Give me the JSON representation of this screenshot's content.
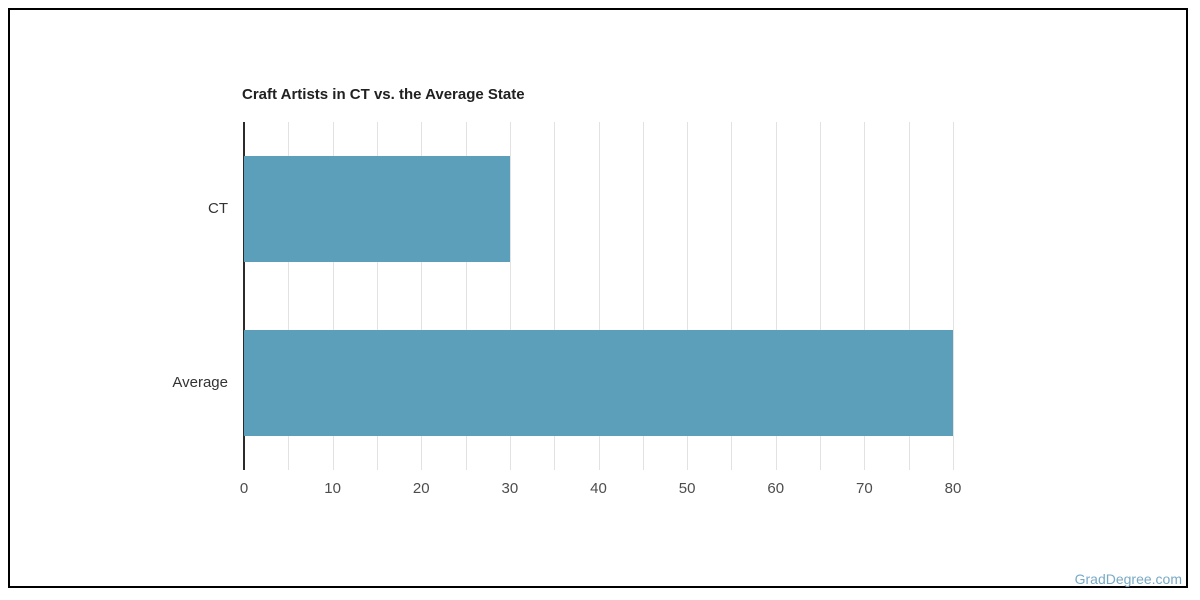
{
  "page": {
    "background": "#ffffff",
    "border_color": "#000000"
  },
  "chart_data": {
    "type": "bar",
    "orientation": "horizontal",
    "title": "Craft Artists in CT vs. the Average State",
    "categories": [
      "CT",
      "Average"
    ],
    "values": [
      30,
      80
    ],
    "xlabel": "",
    "ylabel": "",
    "xlim": [
      0,
      80
    ],
    "x_ticks": [
      0,
      10,
      20,
      30,
      40,
      50,
      60,
      70,
      80
    ],
    "gridline_step": 5,
    "grid": true,
    "legend": "none",
    "bar_color": "#5b9fbb",
    "title_color": "#212121",
    "axis_line_color": "#2b2b2b",
    "gridline_color": "#e2e2e2",
    "tick_label_color": "#4d4d4d",
    "category_label_color": "#333333"
  },
  "watermark": {
    "text": "GradDegree.com",
    "color": "#78aac6"
  }
}
